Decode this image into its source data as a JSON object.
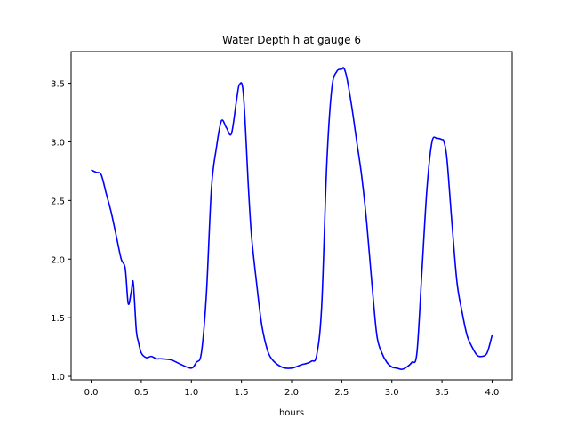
{
  "chart_data": {
    "type": "line",
    "title": "Water Depth h at gauge 6",
    "xlabel": "hours",
    "ylabel": "",
    "xlim": [
      -0.2,
      4.2
    ],
    "ylim": [
      0.97,
      3.77
    ],
    "xticks": [
      0.0,
      0.5,
      1.0,
      1.5,
      2.0,
      2.5,
      3.0,
      3.5,
      4.0
    ],
    "xtick_labels": [
      "0.0",
      "0.5",
      "1.0",
      "1.5",
      "2.0",
      "2.5",
      "3.0",
      "3.5",
      "4.0"
    ],
    "yticks": [
      1.0,
      1.5,
      2.0,
      2.5,
      3.0,
      3.5
    ],
    "ytick_labels": [
      "1.0",
      "1.5",
      "2.0",
      "2.5",
      "3.0",
      "3.5"
    ],
    "grid": false,
    "series": [
      {
        "color": "#0000ff",
        "x": [
          0.0,
          0.05,
          0.1,
          0.15,
          0.2,
          0.25,
          0.3,
          0.34,
          0.37,
          0.4,
          0.42,
          0.45,
          0.47,
          0.5,
          0.55,
          0.6,
          0.65,
          0.7,
          0.8,
          0.9,
          1.0,
          1.05,
          1.1,
          1.15,
          1.2,
          1.25,
          1.3,
          1.35,
          1.4,
          1.45,
          1.48,
          1.52,
          1.57,
          1.6,
          1.65,
          1.7,
          1.75,
          1.8,
          1.9,
          2.0,
          2.1,
          2.15,
          2.2,
          2.25,
          2.3,
          2.35,
          2.4,
          2.45,
          2.5,
          2.52,
          2.55,
          2.6,
          2.65,
          2.7,
          2.75,
          2.8,
          2.85,
          2.9,
          2.95,
          3.0,
          3.05,
          3.1,
          3.15,
          3.2,
          3.25,
          3.3,
          3.35,
          3.4,
          3.45,
          3.5,
          3.52,
          3.55,
          3.6,
          3.65,
          3.7,
          3.75,
          3.8,
          3.85,
          3.9,
          3.95,
          4.0
        ],
        "y": [
          2.76,
          2.74,
          2.72,
          2.56,
          2.4,
          2.2,
          2.0,
          1.92,
          1.62,
          1.72,
          1.8,
          1.4,
          1.3,
          1.2,
          1.16,
          1.17,
          1.15,
          1.15,
          1.14,
          1.1,
          1.07,
          1.12,
          1.2,
          1.7,
          2.6,
          2.95,
          3.18,
          3.12,
          3.07,
          3.35,
          3.49,
          3.4,
          2.6,
          2.2,
          1.8,
          1.45,
          1.25,
          1.15,
          1.08,
          1.07,
          1.1,
          1.11,
          1.13,
          1.18,
          1.6,
          2.8,
          3.45,
          3.6,
          3.62,
          3.63,
          3.55,
          3.3,
          3.0,
          2.7,
          2.3,
          1.8,
          1.35,
          1.2,
          1.12,
          1.08,
          1.07,
          1.06,
          1.08,
          1.12,
          1.2,
          1.9,
          2.6,
          3.0,
          3.03,
          3.02,
          3.0,
          2.85,
          2.3,
          1.8,
          1.55,
          1.35,
          1.25,
          1.18,
          1.17,
          1.2,
          1.35
        ]
      }
    ]
  }
}
